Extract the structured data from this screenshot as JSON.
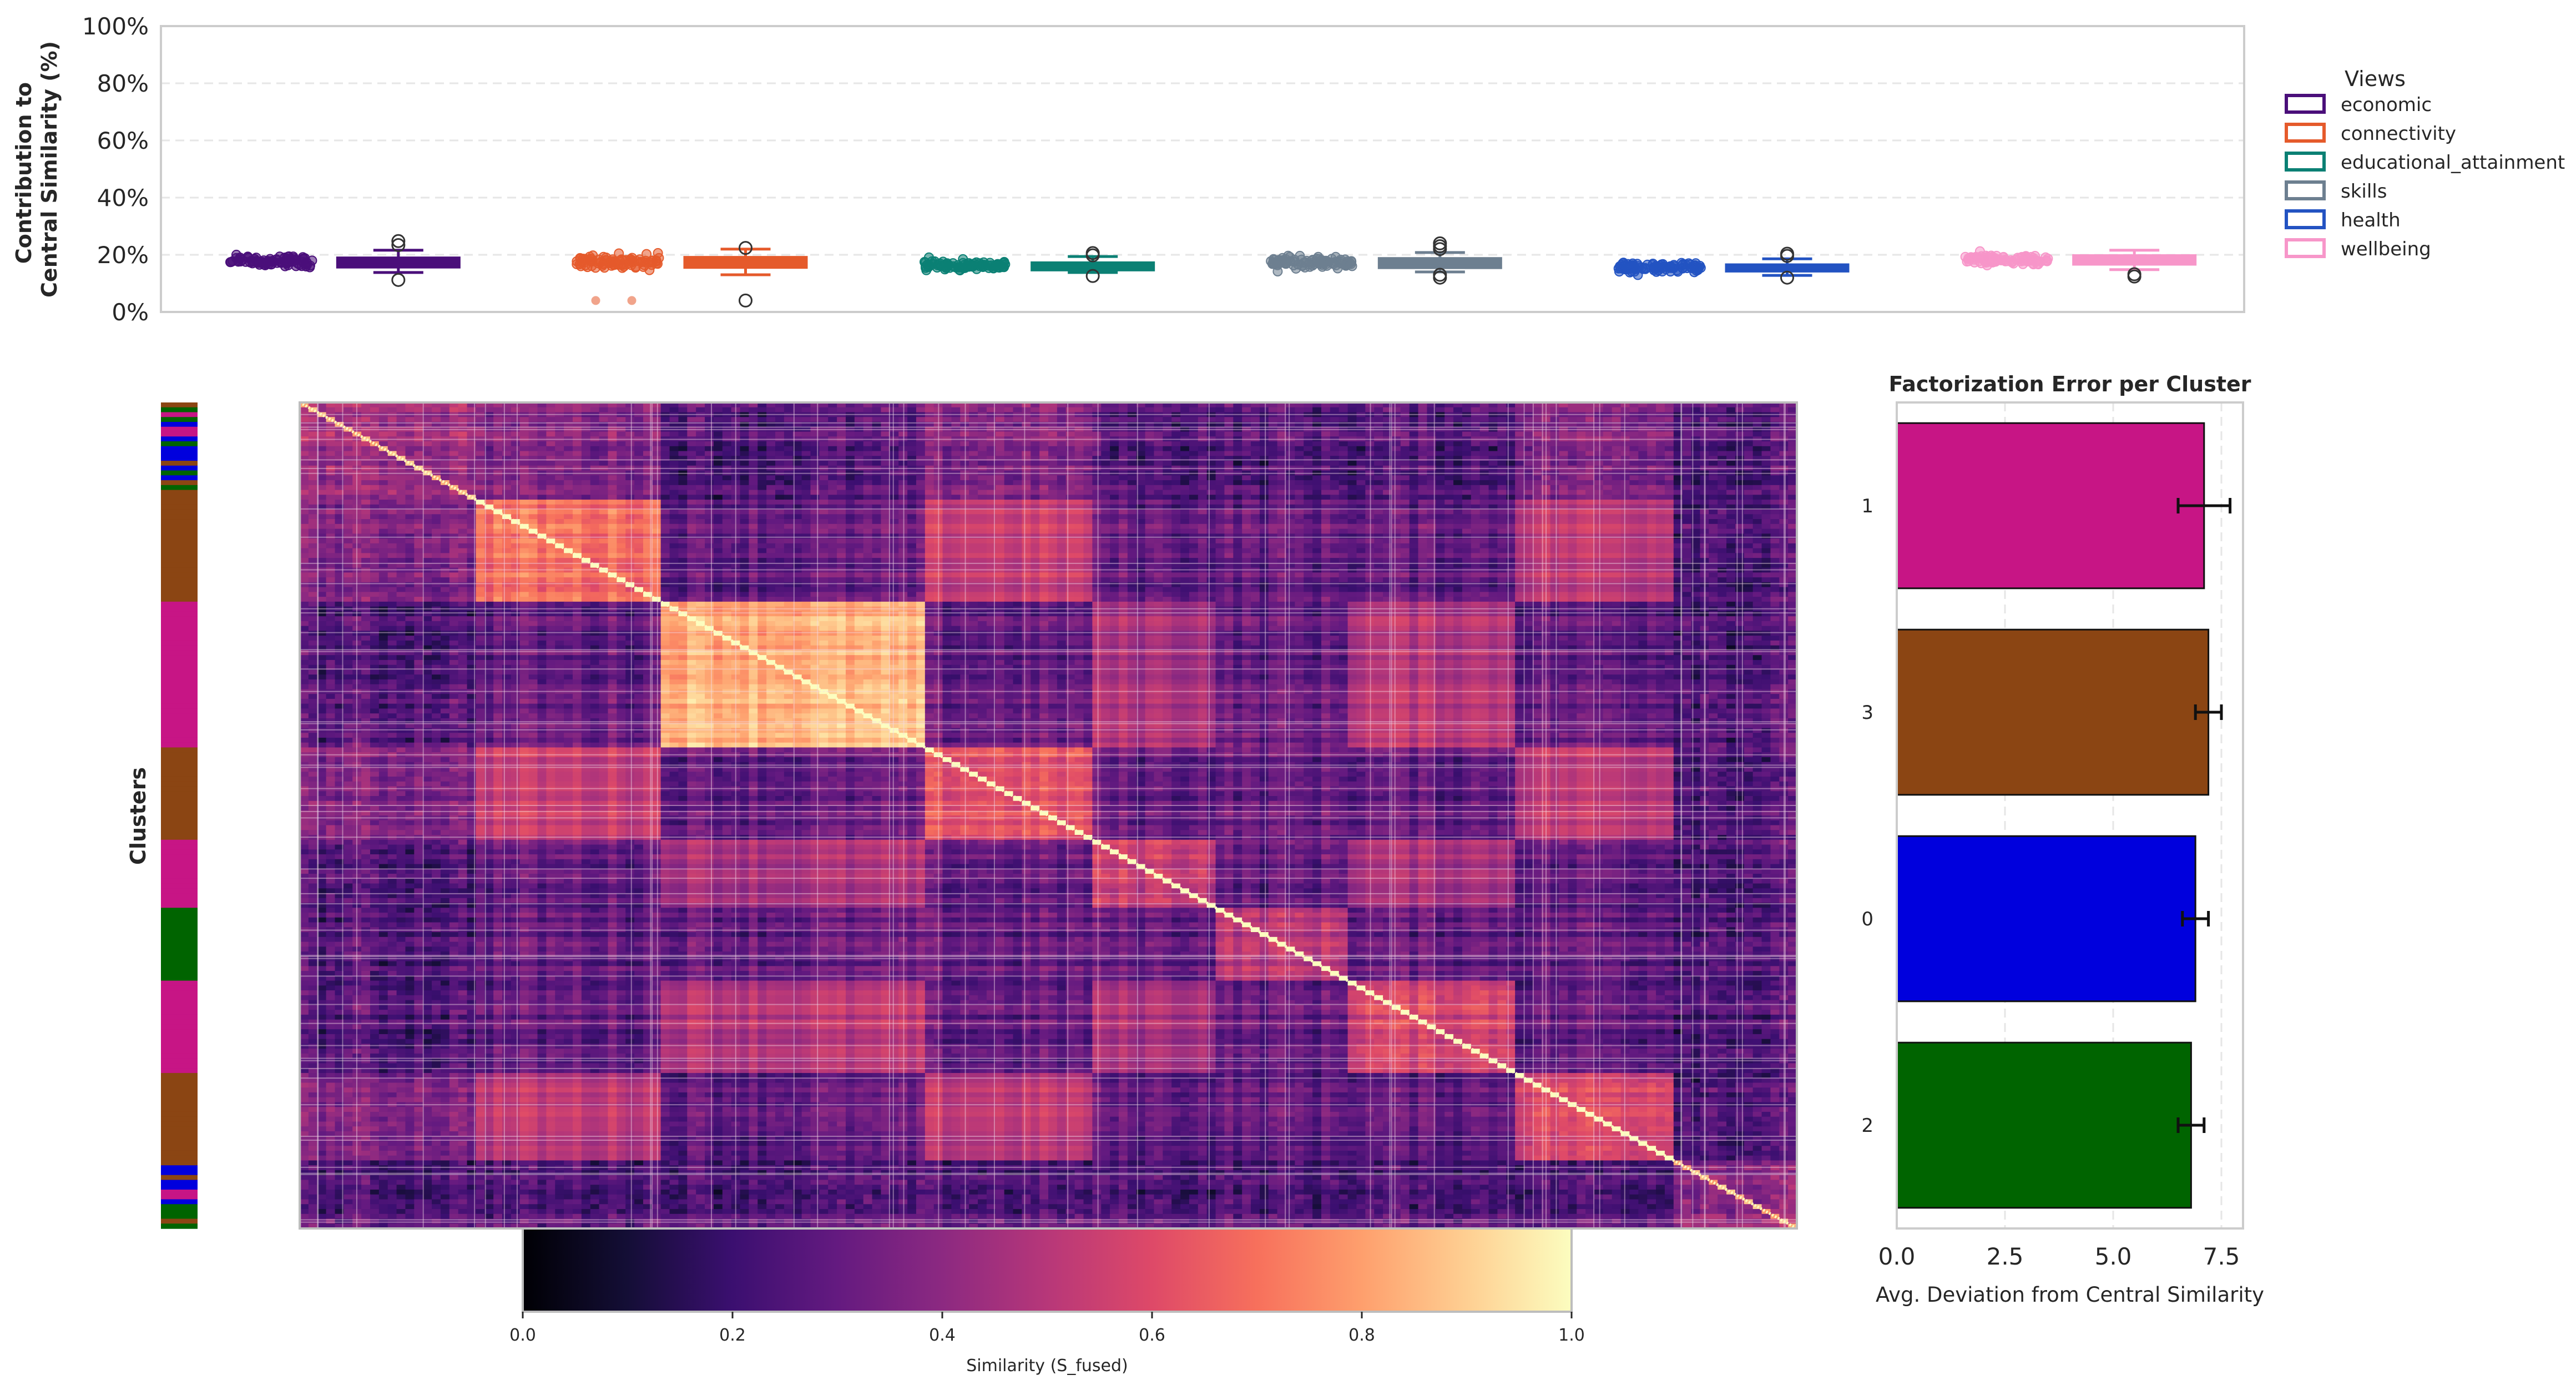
{
  "chart_data": [
    {
      "type": "box",
      "panel": "view-contributions",
      "ylabel": "Contribution to\nCentral Similarity (%)",
      "ylim": [
        0,
        100
      ],
      "yticks": [
        "0%",
        "20%",
        "40%",
        "60%",
        "80%",
        "100%"
      ],
      "grid": true,
      "legend": {
        "title": "Views",
        "placement": "outside-right"
      },
      "series": [
        {
          "name": "economic",
          "color": "#4a0f7a",
          "stats": {
            "whisker_low": 13.8,
            "q1": 15.6,
            "median": 17.5,
            "q3": 19.0,
            "whisker_high": 21.6
          },
          "outliers": [
            11.2,
            23.4,
            24.8
          ],
          "strip_mean": 17.8,
          "strip_spread": 2.6
        },
        {
          "name": "connectivity",
          "color": "#e55a2b",
          "stats": {
            "whisker_low": 13.0,
            "q1": 15.5,
            "median": 17.4,
            "q3": 19.2,
            "whisker_high": 22.0
          },
          "outliers": [
            4.0,
            22.4
          ],
          "strip_mean": 17.5,
          "strip_spread": 2.8
        },
        {
          "name": "educational_attainment",
          "color": "#0b8074",
          "stats": {
            "whisker_low": 13.8,
            "q1": 14.6,
            "median": 16.0,
            "q3": 17.3,
            "whisker_high": 19.4
          },
          "outliers": [
            12.6,
            19.8,
            20.6
          ],
          "strip_mean": 16.2,
          "strip_spread": 1.8
        },
        {
          "name": "skills",
          "color": "#6d7f90",
          "stats": {
            "whisker_low": 14.0,
            "q1": 15.4,
            "median": 17.2,
            "q3": 18.8,
            "whisker_high": 20.8
          },
          "outliers": [
            12.0,
            13.0,
            22.0,
            23.0,
            24.0
          ],
          "strip_mean": 17.6,
          "strip_spread": 2.4
        },
        {
          "name": "health",
          "color": "#2353c2",
          "stats": {
            "whisker_low": 12.8,
            "q1": 14.2,
            "median": 15.4,
            "q3": 16.6,
            "whisker_high": 18.6
          },
          "outliers": [
            12.0,
            19.6,
            20.4
          ],
          "strip_mean": 15.6,
          "strip_spread": 1.9
        },
        {
          "name": "wellbeing",
          "color": "#f796c9",
          "stats": {
            "whisker_low": 14.8,
            "q1": 16.6,
            "median": 18.2,
            "q3": 19.8,
            "whisker_high": 21.6
          },
          "outliers": [
            12.4,
            13.2
          ],
          "strip_mean": 18.2,
          "strip_spread": 2.2
        }
      ]
    },
    {
      "type": "heatmap",
      "panel": "similarity-heatmap",
      "colorbar_label": "Similarity (S_fused)",
      "colormap": "magma",
      "vmin": 0.0,
      "vmax": 1.0,
      "colorbar_ticks": [
        "0.0",
        "0.2",
        "0.4",
        "0.6",
        "0.8",
        "1.0"
      ],
      "diagonal": 1.0,
      "cluster_strip_label": "Clusters",
      "cluster_blocks": [
        {
          "cluster": "3",
          "start": 0.0,
          "end": 0.12,
          "within": 0.52,
          "mixed": true
        },
        {
          "cluster": "3",
          "start": 0.12,
          "end": 0.24,
          "within": 0.7
        },
        {
          "cluster": "1",
          "start": 0.24,
          "end": 0.42,
          "within": 0.84
        },
        {
          "cluster": "3",
          "start": 0.42,
          "end": 0.53,
          "within": 0.62
        },
        {
          "cluster": "1",
          "start": 0.53,
          "end": 0.61,
          "within": 0.55
        },
        {
          "cluster": "2",
          "start": 0.61,
          "end": 0.7,
          "within": 0.5
        },
        {
          "cluster": "1",
          "start": 0.7,
          "end": 0.81,
          "within": 0.58
        },
        {
          "cluster": "3",
          "start": 0.81,
          "end": 0.92,
          "within": 0.6
        },
        {
          "cluster": "0",
          "start": 0.92,
          "end": 1.0,
          "within": 0.48,
          "mixed": true
        }
      ],
      "cluster_colors": {
        "0": "#0000dd",
        "1": "#c71585",
        "2": "#006400",
        "3": "#8b4513"
      }
    },
    {
      "type": "bar",
      "orientation": "horizontal",
      "panel": "factorization-error",
      "title": "Factorization Error per Cluster",
      "xlabel": "Avg. Deviation from Central Similarity",
      "xlim": [
        0,
        8.0
      ],
      "xticks": [
        "0.0",
        "2.5",
        "5.0",
        "7.5"
      ],
      "categories": [
        "1",
        "3",
        "0",
        "2"
      ],
      "values": [
        7.1,
        7.2,
        6.9,
        6.8
      ],
      "errors": [
        0.6,
        0.3,
        0.3,
        0.3
      ],
      "colors": [
        "#c71585",
        "#8b4513",
        "#0000dd",
        "#006400"
      ],
      "grid": true
    }
  ]
}
